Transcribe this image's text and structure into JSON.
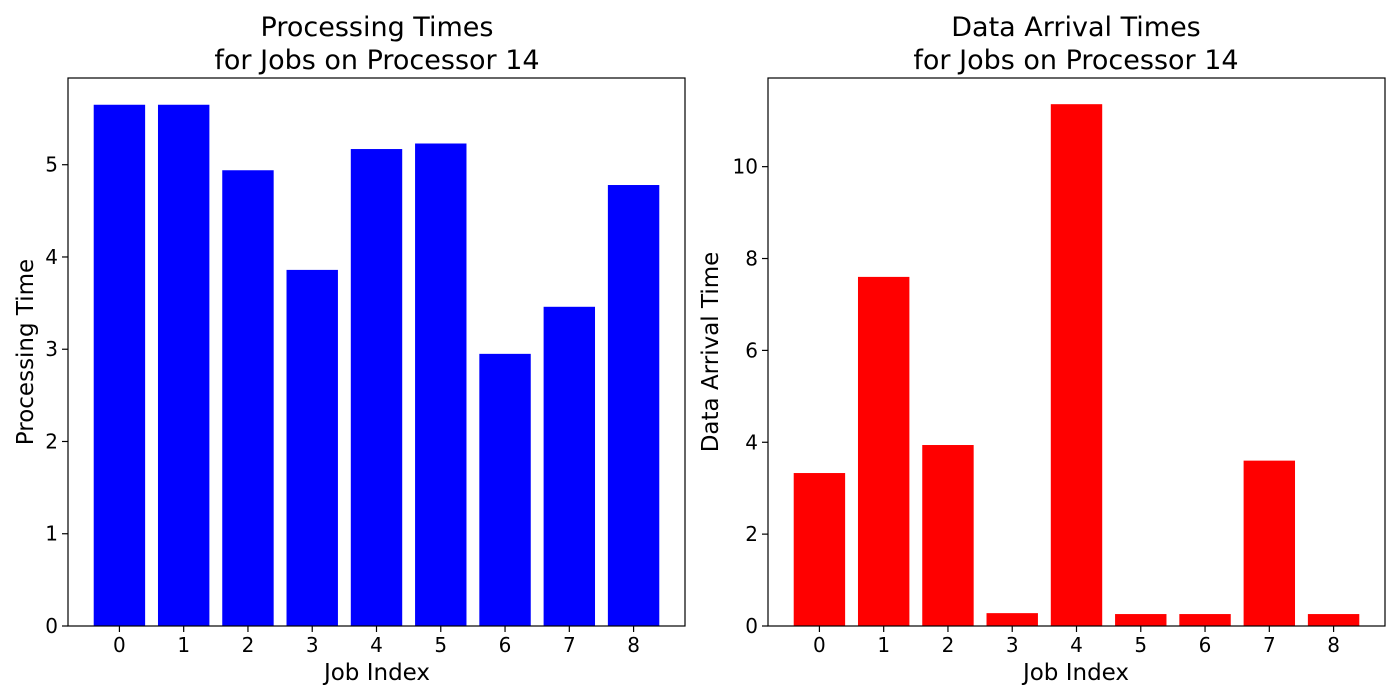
{
  "chart_data": [
    {
      "type": "bar",
      "title": [
        "Processing Times",
        "for Jobs on Processor 14"
      ],
      "xlabel": "Job Index",
      "ylabel": "Processing Time",
      "categories": [
        "0",
        "1",
        "2",
        "3",
        "4",
        "5",
        "6",
        "7",
        "8"
      ],
      "values": [
        5.65,
        5.65,
        4.94,
        3.86,
        5.17,
        5.23,
        2.95,
        3.46,
        4.78
      ],
      "yticks": [
        0,
        1,
        2,
        3,
        4,
        5
      ],
      "ylim": [
        0,
        5.94
      ],
      "color": "#0000ff",
      "grid": false,
      "legend": "none"
    },
    {
      "type": "bar",
      "title": [
        "Data Arrival Times",
        "for Jobs on Processor 14"
      ],
      "xlabel": "Job Index",
      "ylabel": "Data Arrival Time",
      "categories": [
        "0",
        "1",
        "2",
        "3",
        "4",
        "5",
        "6",
        "7",
        "8"
      ],
      "values": [
        3.33,
        7.6,
        3.94,
        0.28,
        11.36,
        0.26,
        0.26,
        3.6,
        0.26
      ],
      "yticks": [
        0,
        2,
        4,
        6,
        8,
        10
      ],
      "ylim": [
        0,
        11.93
      ],
      "color": "#ff0000",
      "grid": false,
      "legend": "none"
    }
  ]
}
